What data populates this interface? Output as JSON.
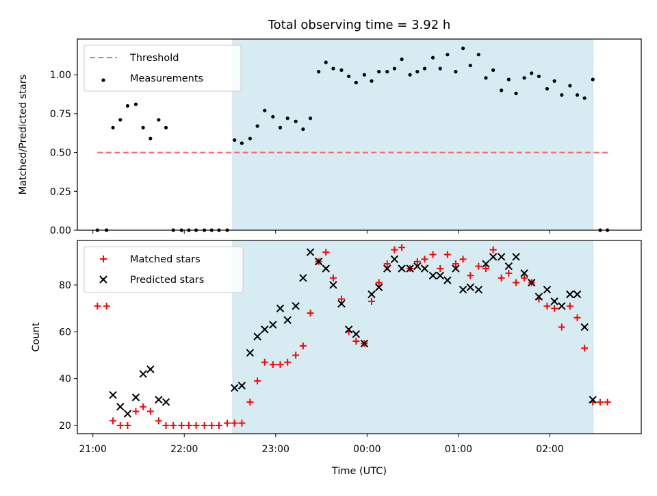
{
  "chart_data": {
    "title": "Total observing time = 3.92 h",
    "xlabel": "Time (UTC)",
    "x_unit": "hours (UTC, continuing past midnight)",
    "xlim": [
      20.83,
      27.0
    ],
    "xticks": [
      {
        "v": 21,
        "label": "21:00"
      },
      {
        "v": 22,
        "label": "22:00"
      },
      {
        "v": 23,
        "label": "23:00"
      },
      {
        "v": 24,
        "label": "00:00"
      },
      {
        "v": 25,
        "label": "01:00"
      },
      {
        "v": 26,
        "label": "02:00"
      }
    ],
    "shaded_interval": {
      "x": [
        22.53,
        26.47
      ],
      "color": "#add8e6"
    },
    "panels": [
      {
        "type": "scatter",
        "ylabel": "Matched/Predicted stars",
        "ylim": [
          0,
          1.23
        ],
        "yticks": [
          "0.00",
          "0.25",
          "0.50",
          "0.75",
          "1.00"
        ],
        "ytick_values": [
          0,
          0.25,
          0.5,
          0.75,
          1.0
        ],
        "legend_position": "upper-left",
        "legend": [
          {
            "key": "threshold",
            "name": "Threshold"
          },
          {
            "key": "measurements",
            "name": "Measurements"
          }
        ],
        "series": [
          {
            "key": "threshold",
            "kind": "line",
            "style": "dashed",
            "color": "#ff6464",
            "x": [
              21.05,
              26.65
            ],
            "y": [
              0.5,
              0.5
            ]
          },
          {
            "key": "measurements",
            "kind": "scatter",
            "marker": "dot",
            "color": "#000000",
            "x": [
              21.05,
              21.15,
              21.22,
              21.3,
              21.38,
              21.47,
              21.55,
              21.63,
              21.72,
              21.8,
              21.88,
              21.97,
              22.05,
              22.13,
              22.22,
              22.3,
              22.38,
              22.47,
              22.55,
              22.63,
              22.72,
              22.8,
              22.88,
              22.97,
              23.05,
              23.13,
              23.22,
              23.3,
              23.38,
              23.47,
              23.55,
              23.63,
              23.72,
              23.8,
              23.88,
              23.97,
              24.05,
              24.13,
              24.22,
              24.3,
              24.38,
              24.47,
              24.55,
              24.63,
              24.72,
              24.8,
              24.88,
              24.97,
              25.05,
              25.13,
              25.22,
              25.3,
              25.38,
              25.47,
              25.55,
              25.63,
              25.72,
              25.8,
              25.88,
              25.97,
              26.05,
              26.13,
              26.22,
              26.3,
              26.38,
              26.47,
              26.55,
              26.63
            ],
            "y": [
              0,
              0,
              0.66,
              0.71,
              0.8,
              0.81,
              0.66,
              0.59,
              0.71,
              0.66,
              0,
              0,
              0,
              0,
              0,
              0,
              0,
              0,
              0.58,
              0.56,
              0.59,
              0.67,
              0.77,
              0.73,
              0.66,
              0.72,
              0.7,
              0.65,
              0.72,
              1.02,
              1.08,
              1.04,
              1.03,
              0.99,
              0.95,
              1.0,
              0.96,
              1.02,
              1.02,
              1.04,
              1.1,
              1.0,
              1.02,
              1.04,
              1.11,
              1.04,
              1.13,
              1.02,
              1.17,
              1.06,
              1.13,
              0.98,
              1.03,
              0.9,
              0.97,
              0.88,
              0.98,
              1.01,
              0.99,
              0.91,
              0.96,
              0.87,
              0.93,
              0.87,
              0.85,
              0.97,
              0,
              0
            ]
          }
        ]
      },
      {
        "type": "scatter",
        "ylabel": "Count",
        "ylim": [
          16.5,
          99
        ],
        "yticks": [
          "20",
          "40",
          "60",
          "80"
        ],
        "ytick_values": [
          20,
          40,
          60,
          80
        ],
        "legend_position": "upper-left",
        "legend": [
          {
            "key": "matched",
            "name": "Matched stars"
          },
          {
            "key": "predicted",
            "name": "Predicted stars"
          }
        ],
        "series": [
          {
            "key": "matched",
            "kind": "scatter",
            "marker": "plus",
            "color": "#ff0000",
            "x": [
              21.05,
              21.15,
              21.22,
              21.3,
              21.38,
              21.47,
              21.55,
              21.63,
              21.72,
              21.8,
              21.88,
              21.97,
              22.05,
              22.13,
              22.22,
              22.3,
              22.38,
              22.47,
              22.55,
              22.63,
              22.72,
              22.8,
              22.88,
              22.97,
              23.05,
              23.13,
              23.22,
              23.3,
              23.38,
              23.47,
              23.55,
              23.63,
              23.72,
              23.8,
              23.88,
              23.97,
              24.05,
              24.13,
              24.22,
              24.3,
              24.38,
              24.47,
              24.55,
              24.63,
              24.72,
              24.8,
              24.88,
              24.97,
              25.05,
              25.13,
              25.22,
              25.3,
              25.38,
              25.47,
              25.55,
              25.63,
              25.72,
              25.8,
              25.88,
              25.97,
              26.05,
              26.13,
              26.22,
              26.3,
              26.38,
              26.47,
              26.55,
              26.63
            ],
            "y": [
              71,
              71,
              22,
              20,
              20,
              26,
              28,
              26,
              22,
              20,
              20,
              20,
              20,
              20,
              20,
              20,
              20,
              21,
              21,
              21,
              30,
              39,
              47,
              46,
              46,
              47,
              50,
              54,
              68,
              90,
              94,
              83,
              74,
              60,
              56,
              55,
              73,
              81,
              89,
              95,
              96,
              87,
              90,
              91,
              93,
              87,
              93,
              89,
              91,
              84,
              88,
              87,
              95,
              83,
              85,
              81,
              83,
              81,
              74,
              71,
              70,
              62,
              71,
              66,
              53,
              30,
              30,
              30
            ]
          },
          {
            "key": "predicted",
            "kind": "scatter",
            "marker": "x",
            "color": "#000000",
            "x": [
              21.22,
              21.3,
              21.38,
              21.47,
              21.55,
              21.63,
              21.72,
              21.8,
              22.55,
              22.63,
              22.72,
              22.8,
              22.88,
              22.97,
              23.05,
              23.13,
              23.22,
              23.3,
              23.38,
              23.47,
              23.55,
              23.63,
              23.72,
              23.8,
              23.88,
              23.97,
              24.05,
              24.13,
              24.22,
              24.3,
              24.38,
              24.47,
              24.55,
              24.63,
              24.72,
              24.8,
              24.88,
              24.97,
              25.05,
              25.13,
              25.22,
              25.3,
              25.38,
              25.47,
              25.55,
              25.63,
              25.72,
              25.8,
              25.88,
              25.97,
              26.05,
              26.13,
              26.22,
              26.3,
              26.38,
              26.47
            ],
            "y": [
              33,
              28,
              25,
              32,
              42,
              44,
              31,
              30,
              36,
              37,
              51,
              58,
              61,
              63,
              70,
              65,
              71,
              83,
              94,
              90,
              87,
              80,
              72,
              61,
              59,
              55,
              76,
              79,
              87,
              91,
              87,
              87,
              88,
              87,
              84,
              84,
              82,
              87,
              78,
              79,
              78,
              89,
              92,
              92,
              88,
              92,
              85,
              81,
              75,
              78,
              73,
              71,
              76,
              76,
              62,
              31
            ]
          }
        ]
      }
    ]
  }
}
